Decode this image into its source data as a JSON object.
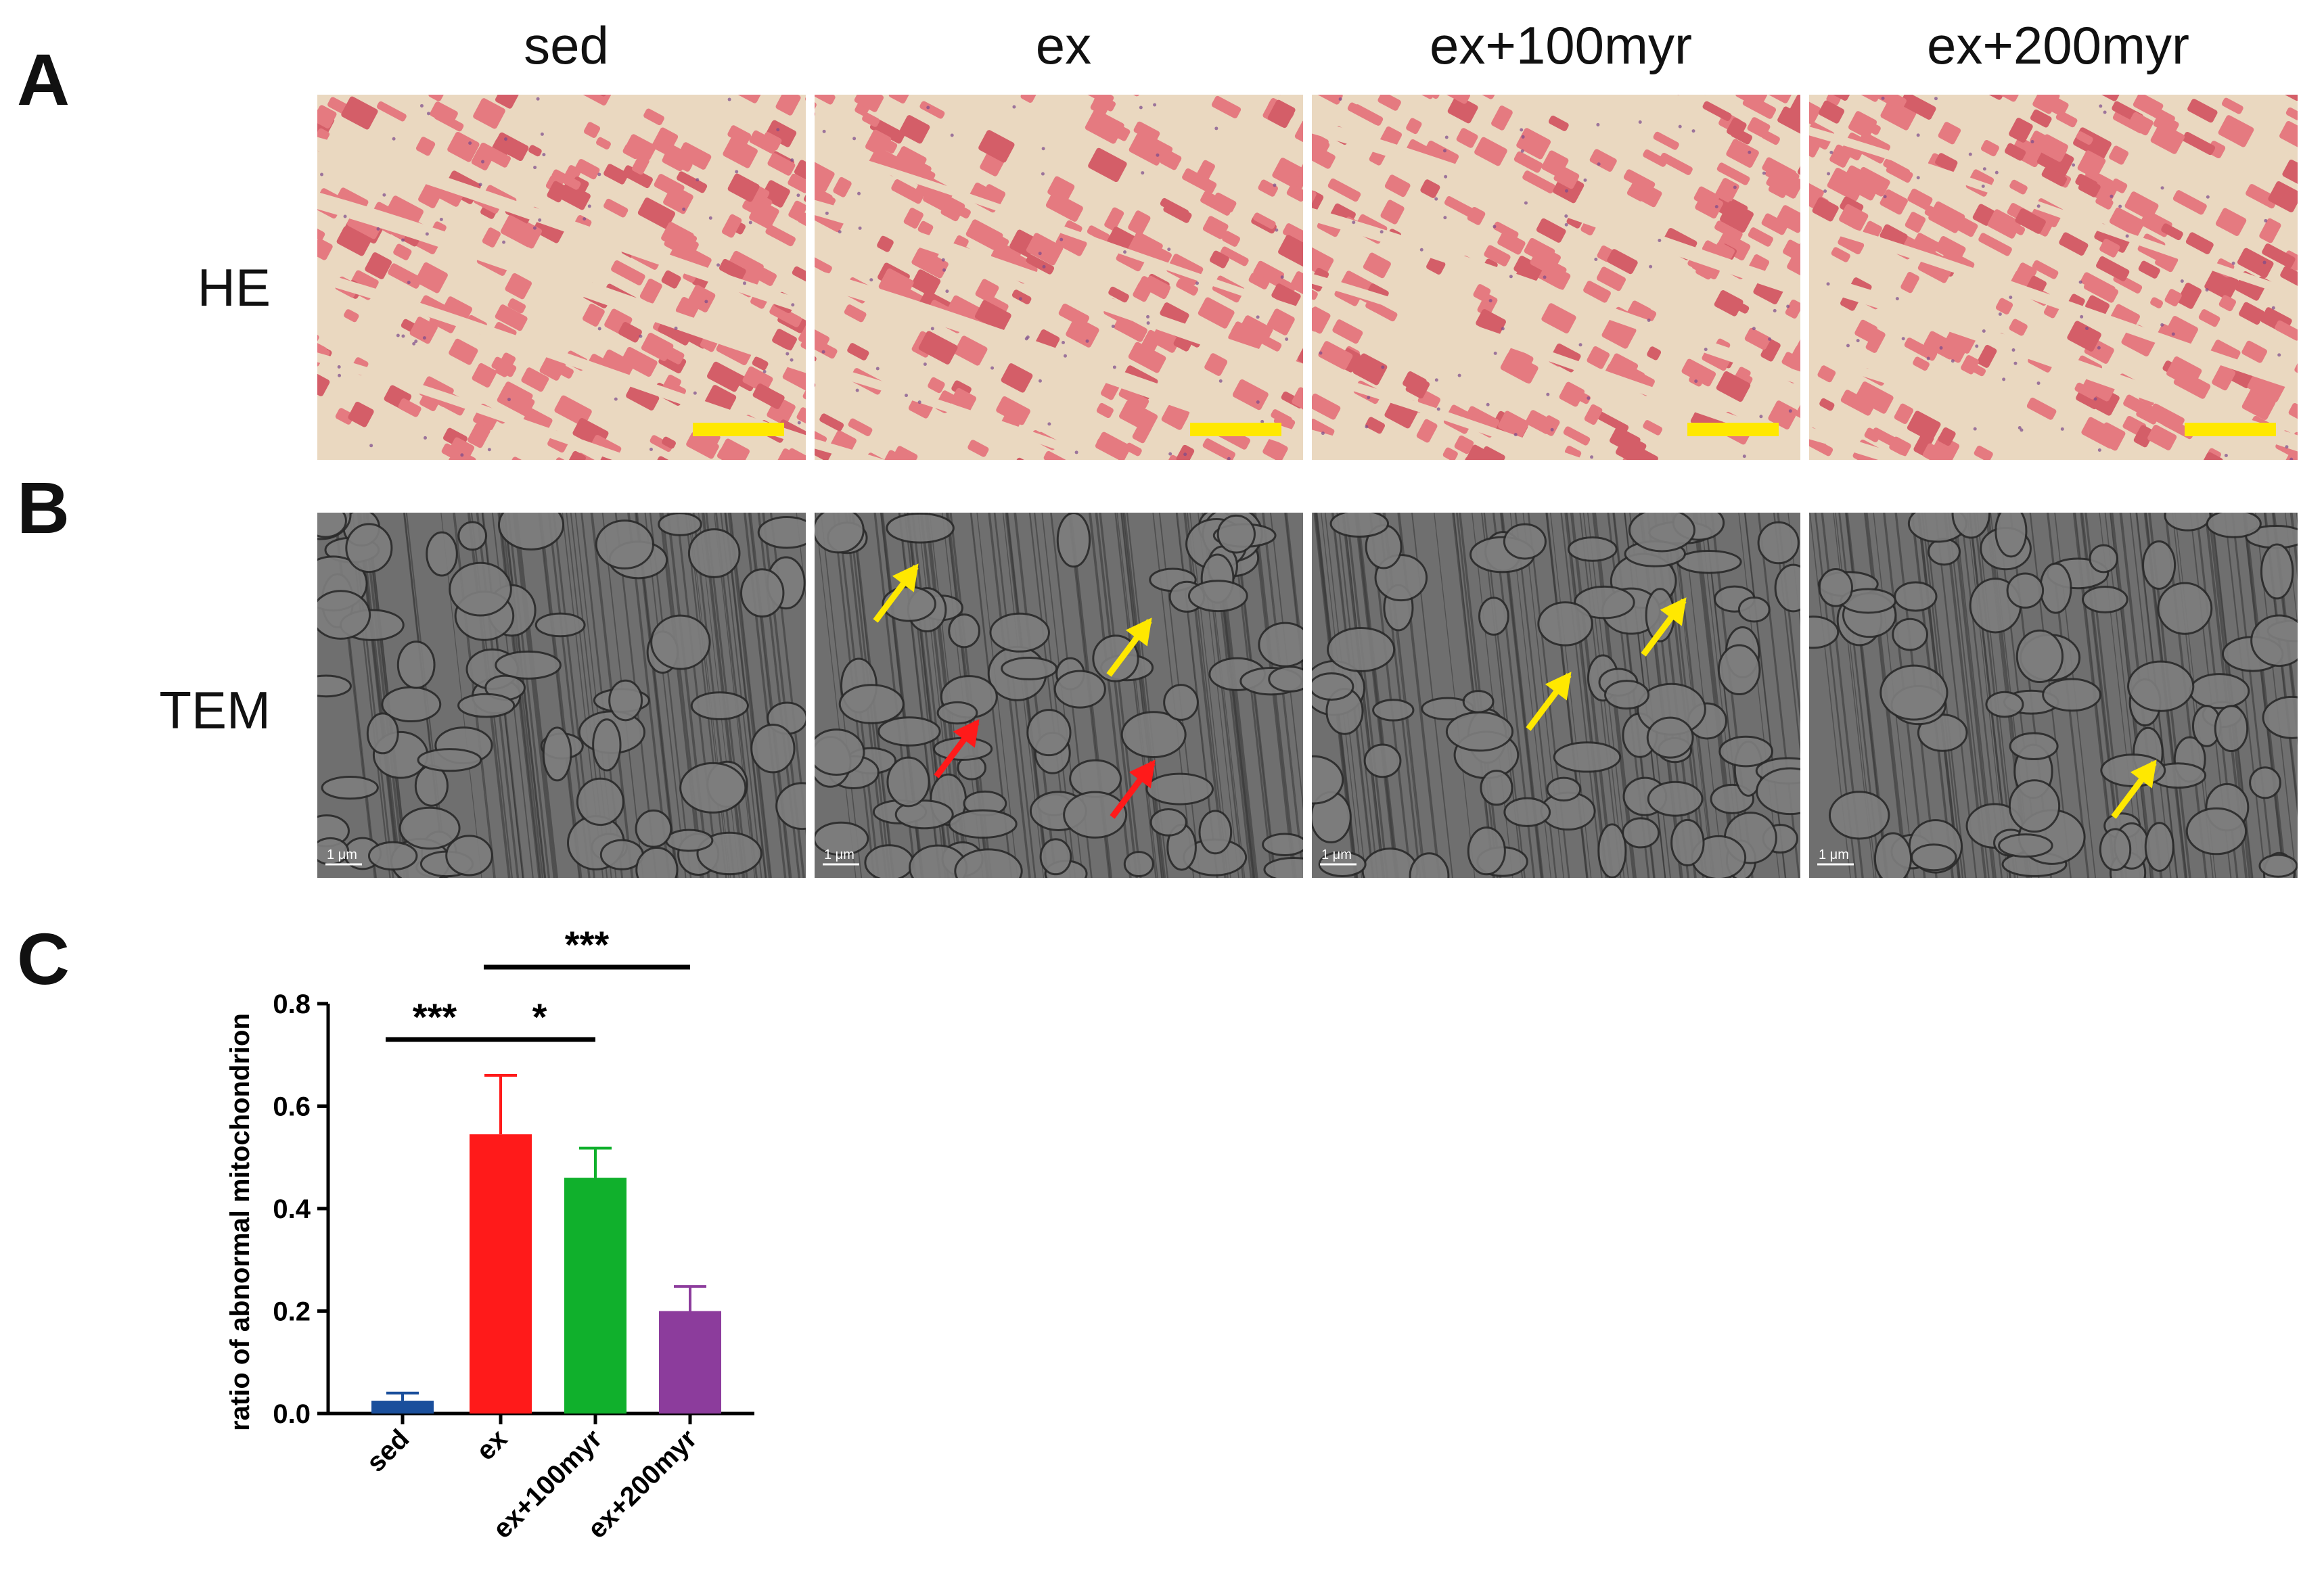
{
  "panels": {
    "a": "A",
    "b": "B",
    "c": "C"
  },
  "columns": [
    "sed",
    "ex",
    "ex+100myr",
    "ex+200myr"
  ],
  "rows": {
    "he": "HE",
    "tem": "TEM"
  },
  "scale_label": "1 μm",
  "colors": {
    "he_bg": "#ead8c0",
    "he_fiber": "#e57a80",
    "he_fiber_dark": "#d45e68",
    "tem_bg": "#6f6f6f",
    "scale_bar": "#ffe800",
    "arrow_yellow": "#ffe800",
    "arrow_red": "#ff1a1a"
  },
  "tem_arrows": [
    {
      "panel": "ex",
      "color": "yellow",
      "count": 2
    },
    {
      "panel": "ex",
      "color": "red",
      "count": 2
    },
    {
      "panel": "ex+100myr",
      "color": "yellow",
      "count": 2
    },
    {
      "panel": "ex+200myr",
      "color": "yellow",
      "count": 1
    }
  ],
  "chart_data": {
    "type": "bar",
    "ylabel": "ratio of abnormal mitochondrion",
    "xlabel": "",
    "ylim": [
      0,
      0.8
    ],
    "yticks": [
      "0.0",
      "0.2",
      "0.4",
      "0.6",
      "0.8"
    ],
    "categories": [
      "sed",
      "ex",
      "ex+100myr",
      "ex+200myr"
    ],
    "values": [
      0.025,
      0.545,
      0.46,
      0.2
    ],
    "errors": [
      0.015,
      0.115,
      0.058,
      0.048
    ],
    "bar_colors": [
      "#1a4f9c",
      "#ff1a1a",
      "#10b02c",
      "#8c3c9c"
    ],
    "significance": [
      {
        "from": "sed",
        "to": "ex",
        "label": "***"
      },
      {
        "from": "ex",
        "to": "ex+100myr",
        "label": "*"
      },
      {
        "from": "ex",
        "to": "ex+200myr",
        "label": "***"
      }
    ]
  }
}
